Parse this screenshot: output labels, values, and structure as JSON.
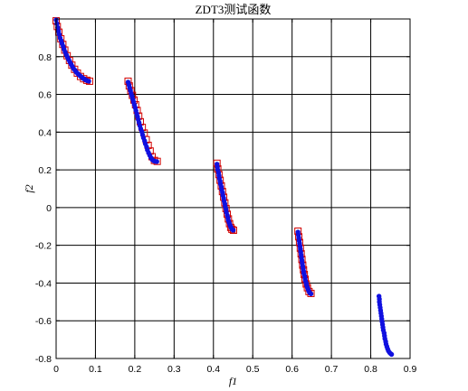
{
  "chart_data": {
    "type": "scatter",
    "title": "ZDT3测试函数",
    "xlabel": "f1",
    "ylabel": "f2",
    "xlim": [
      0,
      0.9
    ],
    "ylim": [
      -0.8,
      1.0
    ],
    "xticks": [
      0,
      0.1,
      0.2,
      0.3,
      0.4,
      0.5,
      0.6,
      0.7,
      0.8,
      0.9
    ],
    "xtick_labels": [
      "0",
      "0.1",
      "0.2",
      "0.3",
      "0.4",
      "0.5",
      "0.6",
      "0.7",
      "0.8",
      "0.9"
    ],
    "yticks": [
      -0.8,
      -0.6,
      -0.4,
      -0.2,
      0,
      0.2,
      0.4,
      0.6,
      0.8
    ],
    "ytick_labels": [
      "-0.8",
      "-0.6",
      "-0.4",
      "-0.2",
      "0",
      "0.2",
      "0.4",
      "0.6",
      "0.8"
    ],
    "grid": true,
    "series": [
      {
        "marker": "square",
        "color": "#d00000",
        "points": [
          [
            0.0,
            0.99
          ],
          [
            0.003,
            0.96
          ],
          [
            0.007,
            0.93
          ],
          [
            0.012,
            0.895
          ],
          [
            0.017,
            0.865
          ],
          [
            0.022,
            0.835
          ],
          [
            0.028,
            0.805
          ],
          [
            0.034,
            0.78
          ],
          [
            0.04,
            0.755
          ],
          [
            0.047,
            0.733
          ],
          [
            0.054,
            0.713
          ],
          [
            0.062,
            0.695
          ],
          [
            0.07,
            0.683
          ],
          [
            0.078,
            0.675
          ],
          [
            0.085,
            0.67
          ],
          [
            0.183,
            0.67
          ],
          [
            0.186,
            0.645
          ],
          [
            0.19,
            0.62
          ],
          [
            0.194,
            0.595
          ],
          [
            0.198,
            0.57
          ],
          [
            0.202,
            0.545
          ],
          [
            0.206,
            0.515
          ],
          [
            0.21,
            0.485
          ],
          [
            0.214,
            0.455
          ],
          [
            0.219,
            0.425
          ],
          [
            0.224,
            0.395
          ],
          [
            0.229,
            0.36
          ],
          [
            0.234,
            0.33
          ],
          [
            0.239,
            0.3
          ],
          [
            0.244,
            0.27
          ],
          [
            0.25,
            0.25
          ],
          [
            0.257,
            0.245
          ],
          [
            0.409,
            0.235
          ],
          [
            0.411,
            0.205
          ],
          [
            0.414,
            0.175
          ],
          [
            0.417,
            0.145
          ],
          [
            0.42,
            0.115
          ],
          [
            0.423,
            0.085
          ],
          [
            0.426,
            0.055
          ],
          [
            0.429,
            0.025
          ],
          [
            0.432,
            -0.005
          ],
          [
            0.435,
            -0.035
          ],
          [
            0.438,
            -0.06
          ],
          [
            0.441,
            -0.085
          ],
          [
            0.444,
            -0.105
          ],
          [
            0.447,
            -0.115
          ],
          [
            0.451,
            -0.12
          ],
          [
            0.615,
            -0.125
          ],
          [
            0.617,
            -0.155
          ],
          [
            0.619,
            -0.185
          ],
          [
            0.621,
            -0.215
          ],
          [
            0.623,
            -0.245
          ],
          [
            0.625,
            -0.275
          ],
          [
            0.627,
            -0.305
          ],
          [
            0.629,
            -0.33
          ],
          [
            0.631,
            -0.355
          ],
          [
            0.633,
            -0.38
          ],
          [
            0.636,
            -0.405
          ],
          [
            0.639,
            -0.425
          ],
          [
            0.643,
            -0.445
          ],
          [
            0.648,
            -0.455
          ]
        ]
      },
      {
        "marker": "dot",
        "color": "#1010e0",
        "points": [
          [
            0.0,
            0.995
          ],
          [
            0.002,
            0.975
          ],
          [
            0.004,
            0.955
          ],
          [
            0.006,
            0.935
          ],
          [
            0.008,
            0.918
          ],
          [
            0.01,
            0.9
          ],
          [
            0.013,
            0.885
          ],
          [
            0.015,
            0.87
          ],
          [
            0.018,
            0.855
          ],
          [
            0.02,
            0.84
          ],
          [
            0.023,
            0.825
          ],
          [
            0.026,
            0.81
          ],
          [
            0.029,
            0.797
          ],
          [
            0.032,
            0.784
          ],
          [
            0.035,
            0.772
          ],
          [
            0.038,
            0.76
          ],
          [
            0.041,
            0.749
          ],
          [
            0.044,
            0.738
          ],
          [
            0.048,
            0.728
          ],
          [
            0.051,
            0.719
          ],
          [
            0.055,
            0.71
          ],
          [
            0.059,
            0.702
          ],
          [
            0.063,
            0.695
          ],
          [
            0.067,
            0.688
          ],
          [
            0.071,
            0.682
          ],
          [
            0.075,
            0.677
          ],
          [
            0.079,
            0.673
          ],
          [
            0.083,
            0.67
          ],
          [
            0.183,
            0.665
          ],
          [
            0.185,
            0.65
          ],
          [
            0.187,
            0.635
          ],
          [
            0.189,
            0.62
          ],
          [
            0.191,
            0.605
          ],
          [
            0.193,
            0.59
          ],
          [
            0.195,
            0.575
          ],
          [
            0.197,
            0.56
          ],
          [
            0.199,
            0.545
          ],
          [
            0.201,
            0.53
          ],
          [
            0.203,
            0.514
          ],
          [
            0.205,
            0.498
          ],
          [
            0.207,
            0.482
          ],
          [
            0.209,
            0.466
          ],
          [
            0.211,
            0.45
          ],
          [
            0.213,
            0.434
          ],
          [
            0.215,
            0.418
          ],
          [
            0.218,
            0.402
          ],
          [
            0.22,
            0.386
          ],
          [
            0.222,
            0.37
          ],
          [
            0.225,
            0.354
          ],
          [
            0.227,
            0.338
          ],
          [
            0.23,
            0.322
          ],
          [
            0.232,
            0.306
          ],
          [
            0.235,
            0.291
          ],
          [
            0.238,
            0.277
          ],
          [
            0.241,
            0.265
          ],
          [
            0.244,
            0.255
          ],
          [
            0.248,
            0.248
          ],
          [
            0.252,
            0.245
          ],
          [
            0.256,
            0.244
          ],
          [
            0.409,
            0.23
          ],
          [
            0.41,
            0.215
          ],
          [
            0.411,
            0.2
          ],
          [
            0.413,
            0.185
          ],
          [
            0.414,
            0.17
          ],
          [
            0.415,
            0.155
          ],
          [
            0.417,
            0.14
          ],
          [
            0.418,
            0.125
          ],
          [
            0.42,
            0.11
          ],
          [
            0.421,
            0.095
          ],
          [
            0.423,
            0.08
          ],
          [
            0.424,
            0.065
          ],
          [
            0.426,
            0.05
          ],
          [
            0.427,
            0.035
          ],
          [
            0.429,
            0.02
          ],
          [
            0.43,
            0.005
          ],
          [
            0.432,
            -0.01
          ],
          [
            0.433,
            -0.025
          ],
          [
            0.435,
            -0.04
          ],
          [
            0.437,
            -0.055
          ],
          [
            0.438,
            -0.068
          ],
          [
            0.44,
            -0.08
          ],
          [
            0.442,
            -0.092
          ],
          [
            0.444,
            -0.102
          ],
          [
            0.446,
            -0.11
          ],
          [
            0.448,
            -0.116
          ],
          [
            0.45,
            -0.12
          ],
          [
            0.615,
            -0.13
          ],
          [
            0.616,
            -0.145
          ],
          [
            0.617,
            -0.16
          ],
          [
            0.618,
            -0.175
          ],
          [
            0.619,
            -0.19
          ],
          [
            0.62,
            -0.205
          ],
          [
            0.621,
            -0.22
          ],
          [
            0.622,
            -0.235
          ],
          [
            0.623,
            -0.25
          ],
          [
            0.624,
            -0.265
          ],
          [
            0.625,
            -0.28
          ],
          [
            0.626,
            -0.295
          ],
          [
            0.627,
            -0.31
          ],
          [
            0.628,
            -0.323
          ],
          [
            0.629,
            -0.336
          ],
          [
            0.63,
            -0.349
          ],
          [
            0.632,
            -0.362
          ],
          [
            0.633,
            -0.375
          ],
          [
            0.634,
            -0.388
          ],
          [
            0.636,
            -0.4
          ],
          [
            0.637,
            -0.412
          ],
          [
            0.639,
            -0.424
          ],
          [
            0.641,
            -0.435
          ],
          [
            0.643,
            -0.445
          ],
          [
            0.645,
            -0.452
          ],
          [
            0.648,
            -0.457
          ],
          [
            0.821,
            -0.47
          ],
          [
            0.822,
            -0.485
          ],
          [
            0.822,
            -0.5
          ],
          [
            0.823,
            -0.515
          ],
          [
            0.824,
            -0.53
          ],
          [
            0.825,
            -0.545
          ],
          [
            0.826,
            -0.56
          ],
          [
            0.827,
            -0.575
          ],
          [
            0.828,
            -0.59
          ],
          [
            0.829,
            -0.605
          ],
          [
            0.83,
            -0.62
          ],
          [
            0.831,
            -0.635
          ],
          [
            0.832,
            -0.65
          ],
          [
            0.834,
            -0.665
          ],
          [
            0.835,
            -0.68
          ],
          [
            0.836,
            -0.695
          ],
          [
            0.838,
            -0.71
          ],
          [
            0.839,
            -0.724
          ],
          [
            0.841,
            -0.737
          ],
          [
            0.843,
            -0.749
          ],
          [
            0.845,
            -0.76
          ],
          [
            0.848,
            -0.769
          ],
          [
            0.851,
            -0.775
          ],
          [
            0.853,
            -0.778
          ]
        ]
      }
    ]
  }
}
